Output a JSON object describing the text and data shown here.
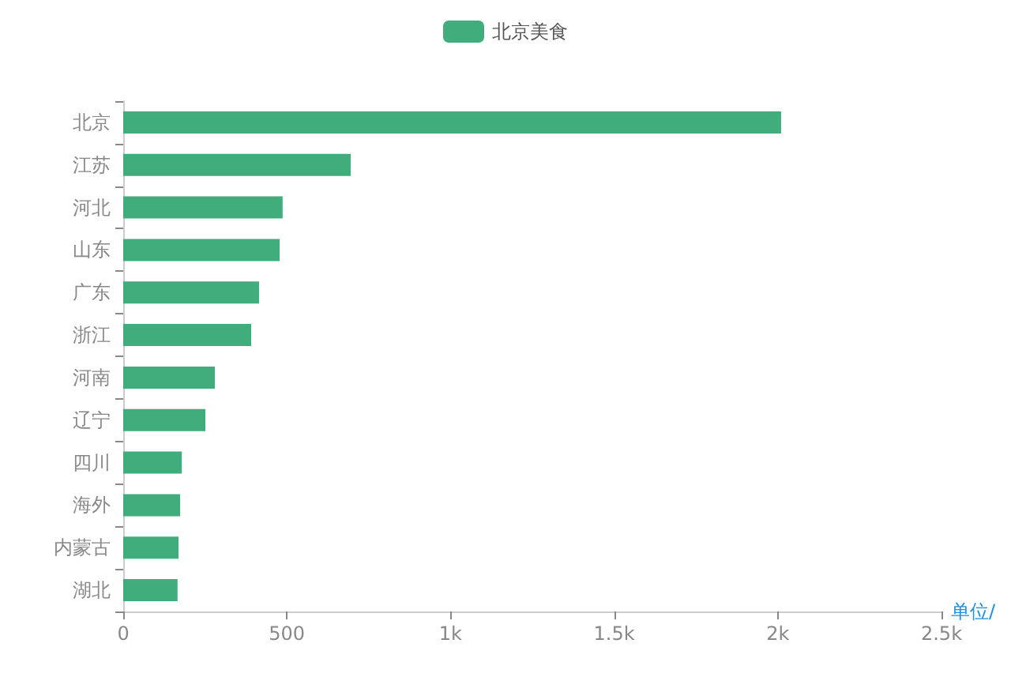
{
  "chart_data": {
    "type": "bar",
    "orientation": "horizontal",
    "xlabel": "单位/",
    "categories": [
      "北京",
      "江苏",
      "河北",
      "山东",
      "广东",
      "浙江",
      "河南",
      "辽宁",
      "四川",
      "海外",
      "内蒙古",
      "湖北"
    ],
    "series": [
      {
        "name": "北京美食",
        "color": "#41ad7d",
        "values": [
          2010,
          695,
          487,
          478,
          415,
          391,
          280,
          251,
          179,
          174,
          169,
          166
        ]
      }
    ],
    "xlim": [
      0,
      2500
    ],
    "xticks": [
      0,
      {
        "value": 500,
        "label": "500"
      },
      {
        "value": 1000,
        "label": "1k"
      },
      {
        "value": 1500,
        "label": "1.5k"
      },
      {
        "value": 2000,
        "label": "2k"
      },
      {
        "value": 2500,
        "label": "2.5k"
      }
    ],
    "legend": "top",
    "grid": false
  }
}
